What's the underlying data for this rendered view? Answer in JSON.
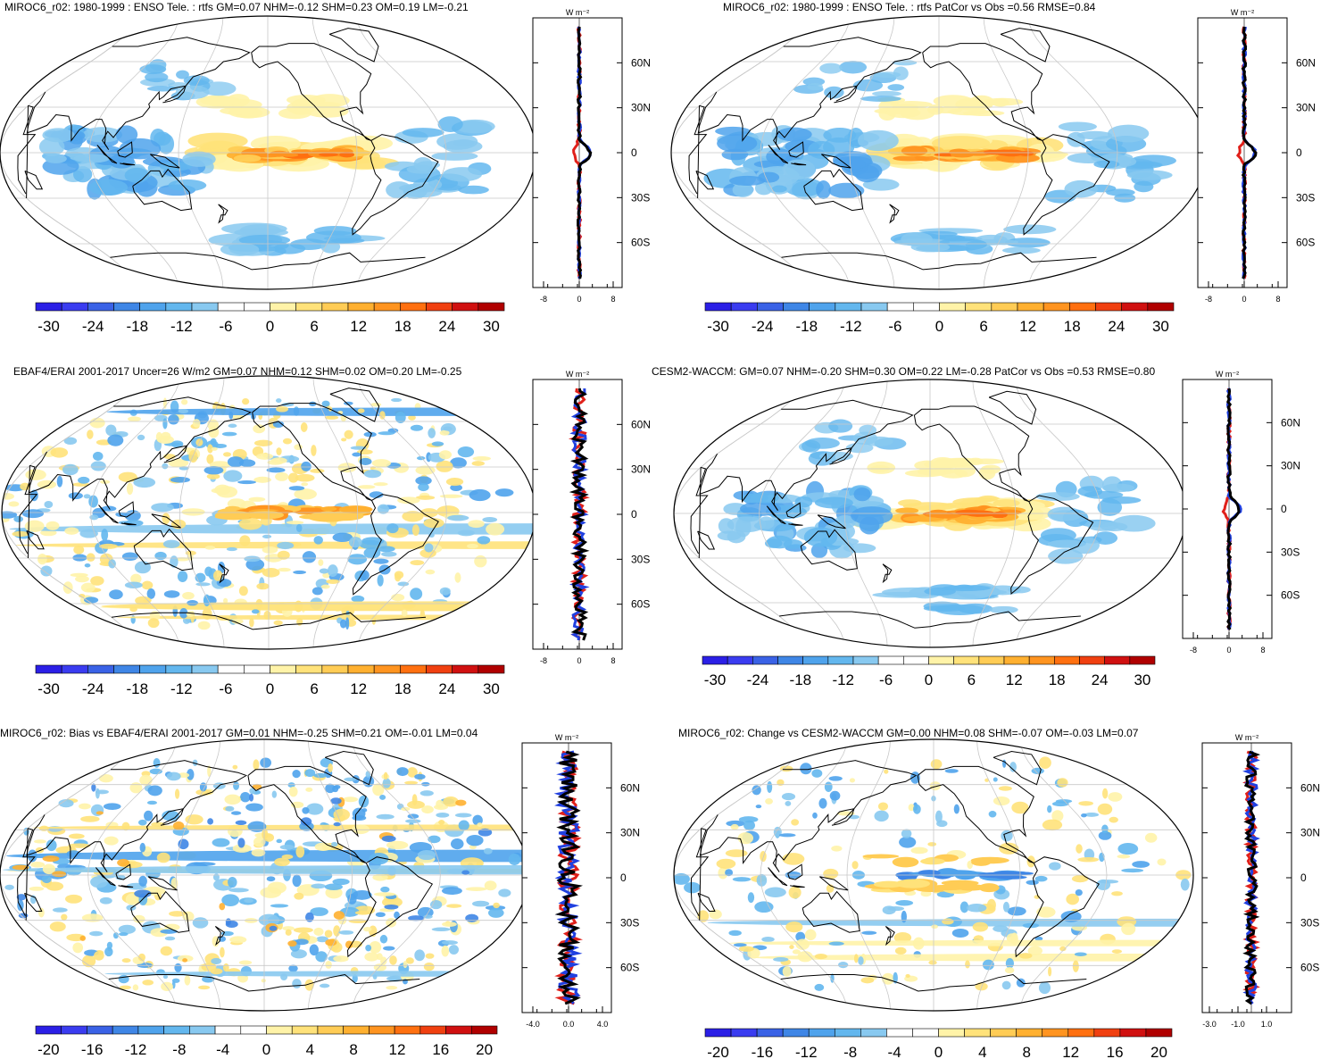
{
  "panels": [
    {
      "id": "p1",
      "title": "MIROC6_r02: 1980-1999 : ENSO Tele. : rtfs GM=0.07 NHM=-0.12 SHM=0.23 OM=0.19 LM=-0.21",
      "colorbar_labels": [
        "-30",
        "-24",
        "-18",
        "-12",
        "-6",
        "0",
        "6",
        "12",
        "18",
        "24",
        "30"
      ],
      "profile_unit": "W m⁻²",
      "profile_xticks": [
        "-8",
        "0",
        "8"
      ],
      "lat_ticks": [
        "60N",
        "30N",
        "0",
        "30S",
        "60S"
      ]
    },
    {
      "id": "p2",
      "title": "MIROC6_r02: 1980-1999 : ENSO Tele. : rtfs PatCor vs Obs =0.56 RMSE=0.84",
      "colorbar_labels": [
        "-30",
        "-24",
        "-18",
        "-12",
        "-6",
        "0",
        "6",
        "12",
        "18",
        "24",
        "30"
      ],
      "profile_unit": "W m⁻²",
      "profile_xticks": [
        "-8",
        "0",
        "8"
      ],
      "lat_ticks": [
        "60N",
        "30N",
        "0",
        "30S",
        "60S"
      ]
    },
    {
      "id": "p3",
      "title": "EBAF4/ERAI 2001-2017 Uncer=26 W/m2 GM=0.07 NHM=0.12 SHM=0.02 OM=0.20 LM=-0.25",
      "colorbar_labels": [
        "-30",
        "-24",
        "-18",
        "-12",
        "-6",
        "0",
        "6",
        "12",
        "18",
        "24",
        "30"
      ],
      "profile_unit": "W m⁻²",
      "profile_xticks": [
        "-8",
        "0",
        "8"
      ],
      "lat_ticks": [
        "60N",
        "30N",
        "0",
        "30S",
        "60S"
      ]
    },
    {
      "id": "p4",
      "title": "CESM2-WACCM: GM=0.07 NHM=-0.20 SHM=0.30 OM=0.22 LM=-0.28 PatCor vs Obs =0.53 RMSE=0.80",
      "colorbar_labels": [
        "-30",
        "-24",
        "-18",
        "-12",
        "-6",
        "0",
        "6",
        "12",
        "18",
        "24",
        "30"
      ],
      "profile_unit": "W m⁻²",
      "profile_xticks": [
        "-8",
        "0",
        "8"
      ],
      "lat_ticks": [
        "60N",
        "30N",
        "0",
        "30S",
        "60S"
      ]
    },
    {
      "id": "p5",
      "title": "MIROC6_r02: Bias vs EBAF4/ERAI 2001-2017 GM=0.01 NHM=-0.25 SHM=0.21 OM=-0.01 LM=0.04",
      "colorbar_labels": [
        "-20",
        "-16",
        "-12",
        "-8",
        "-4",
        "0",
        "4",
        "8",
        "12",
        "16",
        "20"
      ],
      "profile_unit": "W m⁻²",
      "profile_xticks": [
        "-4.0",
        "0.0",
        "4.0"
      ],
      "lat_ticks": [
        "60N",
        "30N",
        "0",
        "30S",
        "60S"
      ]
    },
    {
      "id": "p6",
      "title": "MIROC6_r02: Change vs CESM2-WACCM GM=0.00 NHM=0.08 SHM=-0.07 OM=-0.03 LM=0.07",
      "colorbar_labels": [
        "-20",
        "-16",
        "-12",
        "-8",
        "-4",
        "0",
        "4",
        "8",
        "12",
        "16",
        "20"
      ],
      "profile_unit": "W m⁻²",
      "profile_xticks": [
        "-3.0",
        "-1.0",
        "1.0"
      ],
      "lat_ticks": [
        "60N",
        "30N",
        "0",
        "30S",
        "60S"
      ]
    }
  ],
  "palette": [
    "#2b1fe6",
    "#3a3cf0",
    "#3a62e6",
    "#3f86e6",
    "#4fa3ec",
    "#63b7ee",
    "#88c9f0",
    "#ffffff",
    "#ffffff",
    "#fff3a8",
    "#ffe27a",
    "#ffcc55",
    "#ffb030",
    "#ff9420",
    "#ff7010",
    "#f04010",
    "#d01010",
    "#b00000"
  ],
  "profile_colors": {
    "obs": "#e0201a",
    "model": "#2040e0",
    "zonal": "#000000"
  }
}
